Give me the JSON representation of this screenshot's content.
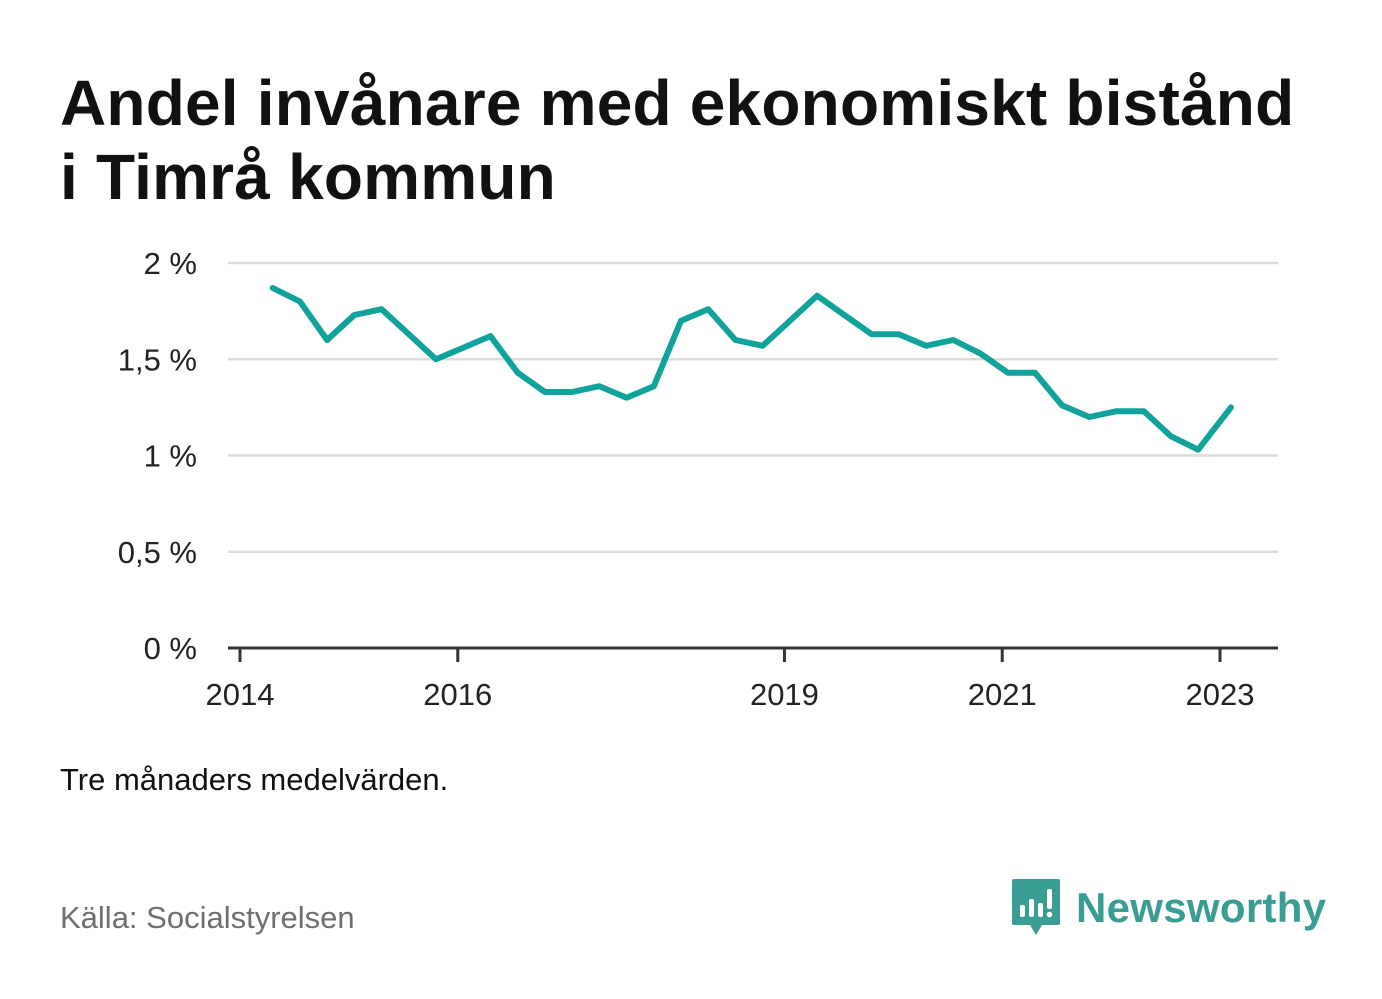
{
  "title": "Andel invånare med ekonomiskt bistånd i Timrå kommun",
  "note": "Tre månaders medelvärden.",
  "source": "Källa: Socialstyrelsen",
  "brand": {
    "name": "Newsworthy",
    "icon": "newsworthy-logo-icon",
    "color": "#3a9d94"
  },
  "colors": {
    "line": "#0fa39b",
    "grid": "#dcdcdc",
    "axis": "#333333"
  },
  "chart_data": {
    "type": "line",
    "title": "Andel invånare med ekonomiskt bistånd i Timrå kommun",
    "xlabel": "",
    "ylabel": "",
    "ylim": [
      0,
      2
    ],
    "xlim": [
      2014,
      2023.75
    ],
    "grid": true,
    "y_ticks": [
      {
        "value": 0,
        "label": "0 %"
      },
      {
        "value": 0.5,
        "label": "0,5 %"
      },
      {
        "value": 1,
        "label": "1 %"
      },
      {
        "value": 1.5,
        "label": "1,5 %"
      },
      {
        "value": 2,
        "label": "2 %"
      }
    ],
    "x_ticks": [
      {
        "value": 2014,
        "label": "2014"
      },
      {
        "value": 2016,
        "label": "2016"
      },
      {
        "value": 2019,
        "label": "2019"
      },
      {
        "value": 2021,
        "label": "2021"
      },
      {
        "value": 2023,
        "label": "2023"
      }
    ],
    "series": [
      {
        "x": [
          2014.3,
          2014.55,
          2014.8,
          2015.05,
          2015.3,
          2015.55,
          2015.8,
          2016.05,
          2016.3,
          2016.55,
          2016.8,
          2017.05,
          2017.3,
          2017.55,
          2017.8,
          2018.05,
          2018.3,
          2018.55,
          2018.8,
          2019.05,
          2019.3,
          2019.55,
          2019.8,
          2020.05,
          2020.3,
          2020.55,
          2020.8,
          2021.05,
          2021.3,
          2021.55,
          2021.8,
          2022.05,
          2022.3,
          2022.55,
          2022.8,
          2023.1
        ],
        "values": [
          1.87,
          1.8,
          1.6,
          1.73,
          1.76,
          1.63,
          1.5,
          1.56,
          1.62,
          1.43,
          1.33,
          1.33,
          1.36,
          1.3,
          1.36,
          1.7,
          1.76,
          1.6,
          1.57,
          1.7,
          1.83,
          1.73,
          1.63,
          1.63,
          1.57,
          1.6,
          1.53,
          1.43,
          1.43,
          1.26,
          1.2,
          1.23,
          1.23,
          1.1,
          1.03,
          1.25
        ]
      }
    ]
  }
}
